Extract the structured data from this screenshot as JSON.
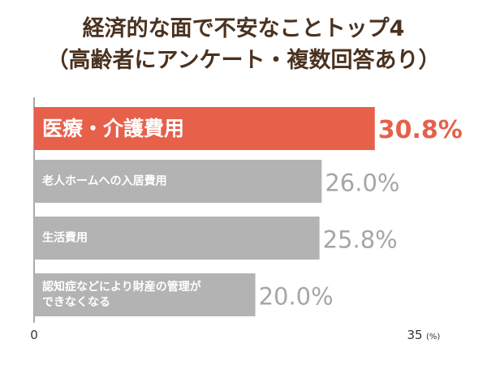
{
  "chart_data": {
    "type": "bar",
    "orientation": "horizontal",
    "title": "経済的な面で不安なことトップ4",
    "subtitle": "（高齢者にアンケート・複数回答あり）",
    "categories": [
      [
        "医療・介護費用"
      ],
      [
        "老人ホームへの入居費用"
      ],
      [
        "生活費用"
      ],
      [
        "認知症などにより財産の管理が",
        "できなくなる"
      ]
    ],
    "values": [
      30.8,
      26.0,
      25.8,
      20.0
    ],
    "value_labels": [
      "30.8%",
      "26.0%",
      "25.8%",
      "20.0%"
    ],
    "xlim": [
      0,
      35
    ],
    "tick_labels": [
      "0",
      "35"
    ],
    "unit_label": "(%)",
    "grid": false,
    "highlight_index": 0,
    "colors": {
      "highlight_bar": "#e6604a",
      "bar": "#b3b3b3",
      "highlight_value": "#e6604a",
      "value": "#a6a6a6",
      "bar_text": "#ffffff",
      "title": "#4a3220",
      "axis": "#555555"
    }
  }
}
